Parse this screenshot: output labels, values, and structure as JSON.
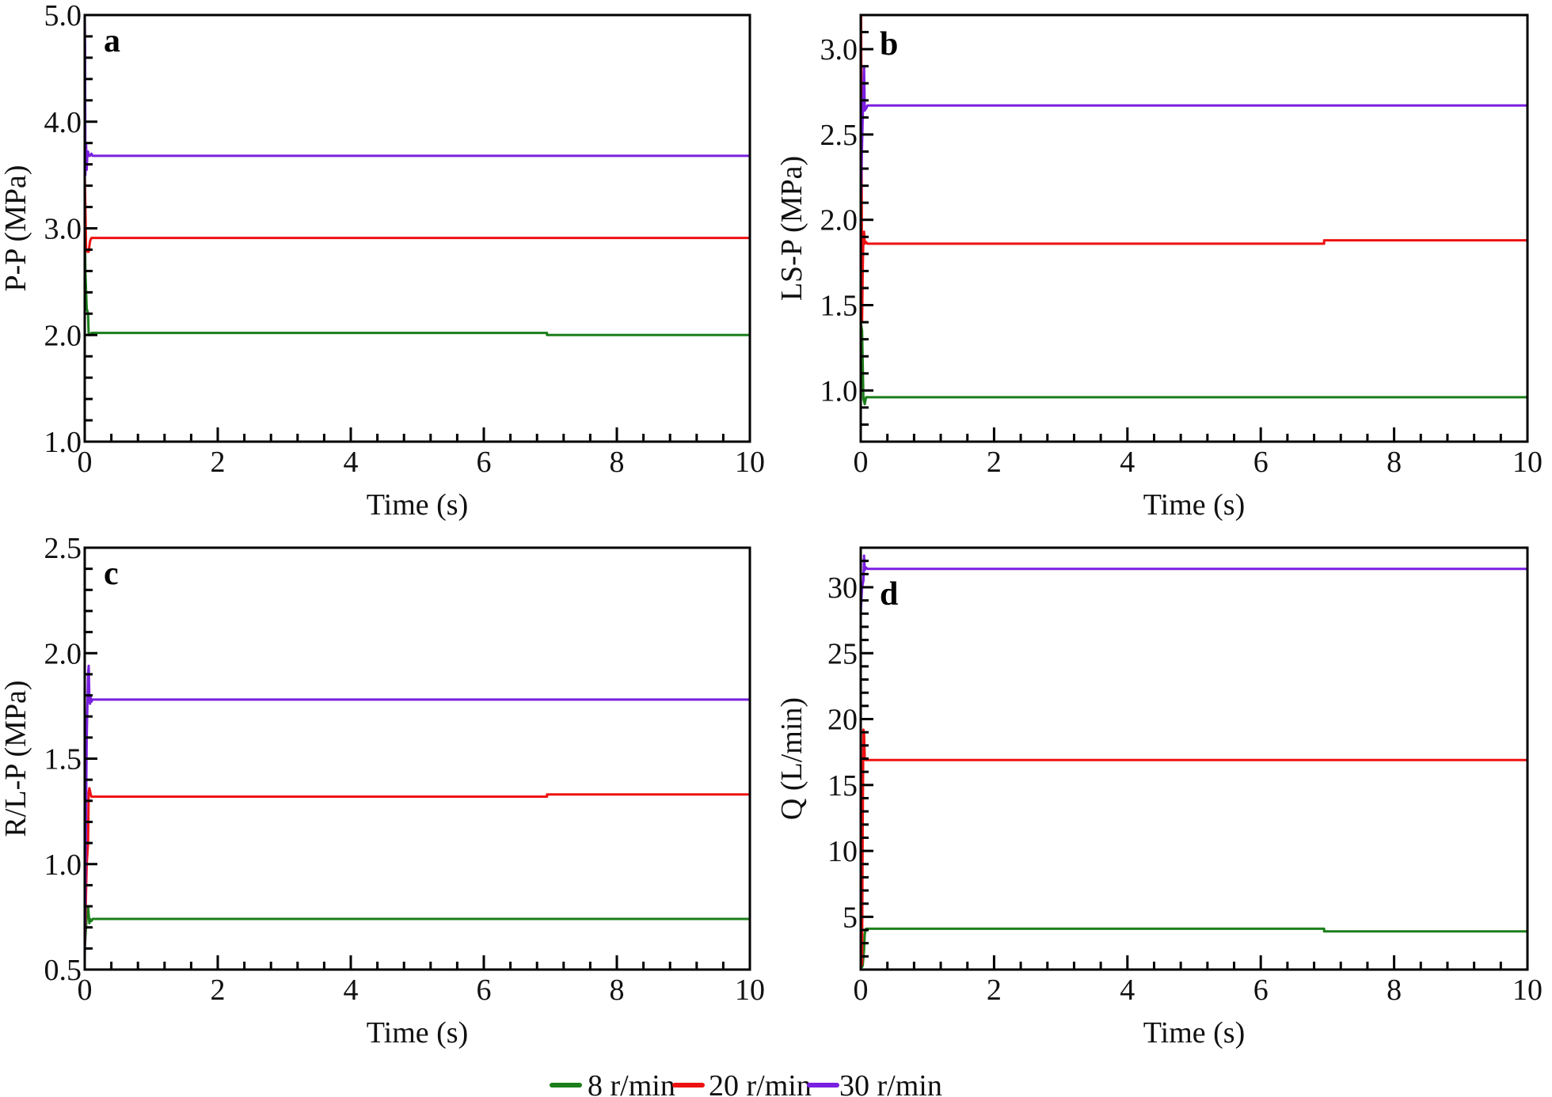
{
  "legend": {
    "position": "bottom-center",
    "entries": [
      {
        "label": "8 r/min",
        "color": "#1a7f1a"
      },
      {
        "label": "20 r/min",
        "color": "#ee1111"
      },
      {
        "label": "30 r/min",
        "color": "#7a1fe0"
      }
    ]
  },
  "chart_data": [
    {
      "type": "line",
      "panel": "a",
      "title": "",
      "xlabel": "Time (s)",
      "ylabel": "P-P (MPa)",
      "xlim": [
        0,
        10
      ],
      "ylim": [
        1.0,
        5.0
      ],
      "xticks": [
        0,
        2,
        4,
        6,
        8,
        10
      ],
      "xtick_labels": [
        "0",
        "2",
        "4",
        "6",
        "8",
        "10"
      ],
      "yticks": [
        1.0,
        2.0,
        3.0,
        4.0,
        5.0
      ],
      "ytick_labels": [
        "1.0",
        "2.0",
        "3.0",
        "4.0",
        "5.0"
      ],
      "x_minor_step": 0.4,
      "y_minor_step": 0.2,
      "grid": false,
      "series": [
        {
          "name": "8 r/min",
          "color": "#1a7f1a",
          "x": [
            0,
            0.01,
            0.03,
            0.05,
            0.06,
            0.08,
            0.1,
            6.95,
            6.95,
            10
          ],
          "y": [
            3.2,
            2.6,
            2.25,
            2.2,
            2.0,
            2.0,
            2.02,
            2.02,
            2.0,
            2.0
          ]
        },
        {
          "name": "20 r/min",
          "color": "#ee1111",
          "x": [
            0,
            0.01,
            0.02,
            0.04,
            0.06,
            0.08,
            0.1,
            10
          ],
          "y": [
            3.5,
            3.2,
            2.8,
            2.78,
            2.78,
            2.88,
            2.91,
            2.91
          ]
        },
        {
          "name": "30 r/min",
          "color": "#7a1fe0",
          "x": [
            0,
            0.005,
            0.01,
            0.02,
            0.03,
            0.04,
            0.05,
            0.06,
            0.08,
            0.1,
            0.12,
            10
          ],
          "y": [
            5.0,
            4.7,
            3.5,
            3.8,
            3.55,
            3.72,
            3.72,
            3.68,
            3.68,
            3.7,
            3.68,
            3.68
          ]
        }
      ]
    },
    {
      "type": "line",
      "panel": "b",
      "title": "",
      "xlabel": "Time (s)",
      "ylabel": "LS-P (MPa)",
      "xlim": [
        0,
        10
      ],
      "ylim": [
        0.7,
        3.2
      ],
      "xticks": [
        0,
        2,
        4,
        6,
        8,
        10
      ],
      "xtick_labels": [
        "0",
        "2",
        "4",
        "6",
        "8",
        "10"
      ],
      "yticks": [
        1.0,
        1.5,
        2.0,
        2.5,
        3.0
      ],
      "ytick_labels": [
        "1.0",
        "1.5",
        "2.0",
        "2.5",
        "3.0"
      ],
      "x_minor_step": 0.4,
      "y_minor_step": 0.1,
      "grid": false,
      "series": [
        {
          "name": "8 r/min",
          "color": "#1a7f1a",
          "x": [
            0,
            0.02,
            0.04,
            0.06,
            0.08,
            0.1,
            10
          ],
          "y": [
            1.4,
            1.35,
            0.95,
            0.92,
            0.96,
            0.96,
            0.96
          ]
        },
        {
          "name": "20 r/min",
          "color": "#ee1111",
          "x": [
            0,
            0.005,
            0.01,
            0.02,
            0.03,
            0.04,
            0.05,
            0.06,
            0.08,
            0.1,
            6.95,
            6.95,
            10
          ],
          "y": [
            0.7,
            3.2,
            2.8,
            1.4,
            1.7,
            1.9,
            1.93,
            1.86,
            1.87,
            1.86,
            1.86,
            1.88,
            1.88
          ]
        },
        {
          "name": "30 r/min",
          "color": "#7a1fe0",
          "x": [
            0,
            0.03,
            0.05,
            0.06,
            0.07,
            0.08,
            0.1,
            0.12,
            10
          ],
          "y": [
            2.1,
            2.6,
            2.9,
            2.64,
            2.66,
            2.65,
            2.67,
            2.67,
            2.67
          ]
        }
      ]
    },
    {
      "type": "line",
      "panel": "c",
      "title": "",
      "xlabel": "Time (s)",
      "ylabel": "R/L-P (MPa)",
      "xlim": [
        0,
        10
      ],
      "ylim": [
        0.5,
        2.5
      ],
      "xticks": [
        0,
        2,
        4,
        6,
        8,
        10
      ],
      "xtick_labels": [
        "0",
        "2",
        "4",
        "6",
        "8",
        "10"
      ],
      "yticks": [
        0.5,
        1.0,
        1.5,
        2.0,
        2.5
      ],
      "ytick_labels": [
        "0.5",
        "1.0",
        "1.5",
        "2.0",
        "2.5"
      ],
      "x_minor_step": 0.4,
      "y_minor_step": 0.1,
      "grid": false,
      "series": [
        {
          "name": "8 r/min",
          "color": "#1a7f1a",
          "x": [
            0,
            0.03,
            0.05,
            0.07,
            0.08,
            0.1,
            0.12,
            10
          ],
          "y": [
            0.6,
            0.75,
            0.8,
            0.72,
            0.74,
            0.73,
            0.74,
            0.74
          ]
        },
        {
          "name": "20 r/min",
          "color": "#ee1111",
          "x": [
            0,
            0.03,
            0.05,
            0.06,
            0.07,
            0.09,
            0.1,
            6.95,
            6.95,
            10
          ],
          "y": [
            0.6,
            1.0,
            1.1,
            1.34,
            1.36,
            1.33,
            1.32,
            1.32,
            1.33,
            1.33
          ]
        },
        {
          "name": "30 r/min",
          "color": "#7a1fe0",
          "x": [
            0,
            0.03,
            0.05,
            0.06,
            0.07,
            0.08,
            0.09,
            0.1,
            0.12,
            10
          ],
          "y": [
            0.55,
            1.6,
            1.9,
            1.94,
            1.78,
            1.76,
            1.79,
            1.77,
            1.78,
            1.78
          ]
        }
      ]
    },
    {
      "type": "line",
      "panel": "d",
      "title": "",
      "xlabel": "Time (s)",
      "ylabel": "Q (L/min)",
      "xlim": [
        0,
        10
      ],
      "ylim": [
        1,
        33
      ],
      "xticks": [
        0,
        2,
        4,
        6,
        8,
        10
      ],
      "xtick_labels": [
        "0",
        "2",
        "4",
        "6",
        "8",
        "10"
      ],
      "yticks": [
        5,
        10,
        15,
        20,
        25,
        30
      ],
      "ytick_labels": [
        "5",
        "10",
        "15",
        "20",
        "25",
        "30"
      ],
      "x_minor_step": 0.4,
      "y_minor_step": 1,
      "grid": false,
      "series": [
        {
          "name": "8 r/min",
          "color": "#1a7f1a",
          "x": [
            0,
            0.01,
            0.02,
            0.03,
            0.05,
            0.06,
            0.08,
            0.1,
            6.95,
            6.95,
            10
          ],
          "y": [
            6,
            1.2,
            1.2,
            1.3,
            2.5,
            3.7,
            4.1,
            4.1,
            4.1,
            3.9,
            3.9
          ]
        },
        {
          "name": "20 r/min",
          "color": "#ee1111",
          "x": [
            0,
            0.01,
            0.02,
            0.03,
            0.04,
            0.05,
            0.06,
            0.07,
            0.1,
            10
          ],
          "y": [
            5,
            1.3,
            1.5,
            12,
            19.2,
            19,
            17,
            16.9,
            16.9,
            16.9
          ]
        },
        {
          "name": "30 r/min",
          "color": "#7a1fe0",
          "x": [
            0,
            0.01,
            0.02,
            0.04,
            0.05,
            0.06,
            0.08,
            0.1,
            10
          ],
          "y": [
            28,
            29,
            30,
            30.5,
            32.4,
            31.3,
            31.5,
            31.4,
            31.4
          ]
        }
      ]
    }
  ]
}
